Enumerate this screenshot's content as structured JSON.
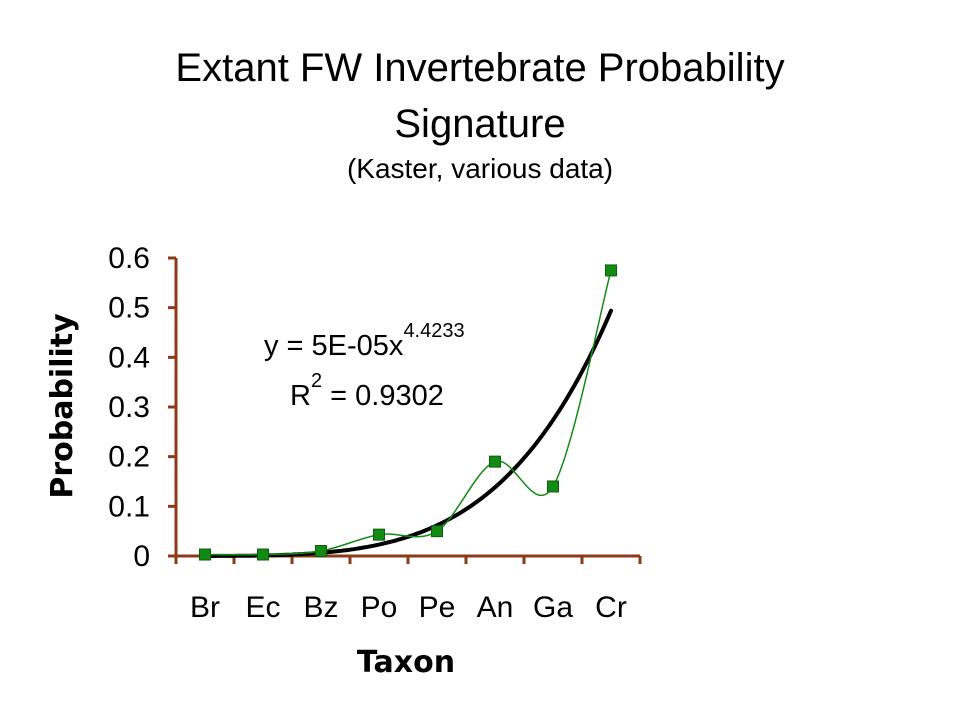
{
  "header": {
    "title_line1": "Extant FW Invertebrate Probability",
    "title_line2": "Signature",
    "subtitle": "(Kaster, various data)"
  },
  "chart_data": {
    "type": "line",
    "title": "Extant FW Invertebrate Probability Signature",
    "subtitle": "(Kaster, various data)",
    "xlabel": "Taxon",
    "ylabel": "Probability",
    "categories": [
      "Br",
      "Ec",
      "Bz",
      "Po",
      "Pe",
      "An",
      "Ga",
      "Cr"
    ],
    "ylim": [
      0,
      0.6
    ],
    "yticks": [
      0,
      0.1,
      0.2,
      0.3,
      0.4,
      0.5,
      0.6
    ],
    "ytick_labels": [
      "0",
      "0.1",
      "0.2",
      "0.3",
      "0.4",
      "0.5",
      "0.6"
    ],
    "grid": false,
    "series": [
      {
        "values": [
          0.003,
          0.003,
          0.01,
          0.043,
          0.05,
          0.19,
          0.14,
          0.575
        ],
        "color": "#138a13",
        "marker": "square",
        "smooth": true
      }
    ],
    "trendline": {
      "type": "power",
      "a": 5e-05,
      "b": 4.4233,
      "color": "#000000",
      "equation_prefix": "y = 5E-05x",
      "equation_exponent": "4.4233",
      "r2_prefix": "R",
      "r2_exponent": "2",
      "r2_suffix": " = 0.9302"
    }
  },
  "colors": {
    "axis": "#8b3a1a",
    "series": "#138a13",
    "trend": "#000000"
  }
}
